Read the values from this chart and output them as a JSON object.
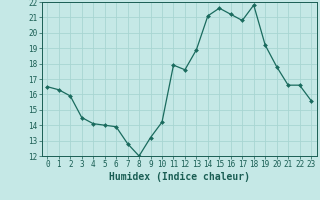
{
  "x": [
    0,
    1,
    2,
    3,
    4,
    5,
    6,
    7,
    8,
    9,
    10,
    11,
    12,
    13,
    14,
    15,
    16,
    17,
    18,
    19,
    20,
    21,
    22,
    23
  ],
  "y": [
    16.5,
    16.3,
    15.9,
    14.5,
    14.1,
    14.0,
    13.9,
    12.8,
    12.0,
    13.2,
    14.2,
    17.9,
    17.6,
    18.9,
    21.1,
    21.6,
    21.2,
    20.8,
    21.8,
    19.2,
    17.8,
    16.6,
    16.6,
    15.6
  ],
  "line_color": "#1a6b5e",
  "marker": "D",
  "marker_size": 2.0,
  "bg_color": "#c5e8e6",
  "grid_color": "#a8d5d2",
  "xlabel": "Humidex (Indice chaleur)",
  "ylim": [
    12,
    22
  ],
  "xlim": [
    -0.5,
    23.5
  ],
  "yticks": [
    12,
    13,
    14,
    15,
    16,
    17,
    18,
    19,
    20,
    21,
    22
  ],
  "xticks": [
    0,
    1,
    2,
    3,
    4,
    5,
    6,
    7,
    8,
    9,
    10,
    11,
    12,
    13,
    14,
    15,
    16,
    17,
    18,
    19,
    20,
    21,
    22,
    23
  ],
  "tick_label_color": "#1a5e54",
  "xlabel_fontsize": 7.0,
  "tick_fontsize": 5.5,
  "xlabel_color": "#1a5e54",
  "linewidth": 0.9
}
